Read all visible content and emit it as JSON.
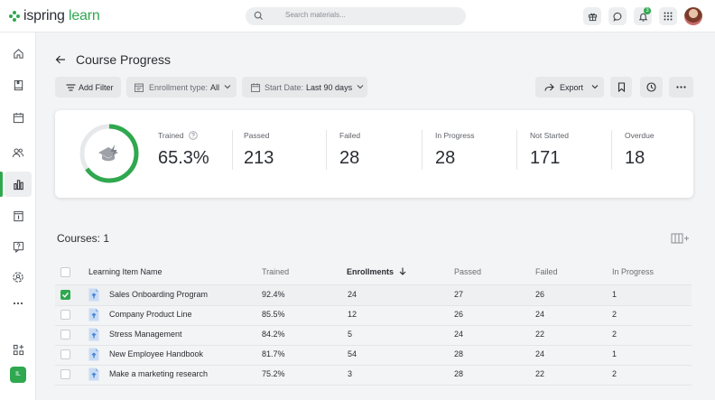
{
  "app": {
    "logo_text": "ispring",
    "logo_suffix": "learn"
  },
  "search": {
    "placeholder": "Search materials..."
  },
  "header": {
    "notification_count": "3"
  },
  "sidebar": {
    "user_initials": "IL"
  },
  "page": {
    "title": "Course Progress"
  },
  "toolbar": {
    "add_filter": "Add Filter",
    "enrollment_label": "Enrollment type:",
    "enrollment_value": "All",
    "start_date_label": "Start Date:",
    "start_date_value": "Last 90 days",
    "export": "Export"
  },
  "summary": {
    "trained_fraction": 0.653,
    "stats": [
      {
        "label": "Trained",
        "value": "65.3%"
      },
      {
        "label": "Passed",
        "value": "213"
      },
      {
        "label": "Failed",
        "value": "28"
      },
      {
        "label": "In Progress",
        "value": "28"
      },
      {
        "label": "Not Started",
        "value": "171"
      },
      {
        "label": "Overdue",
        "value": "18"
      }
    ]
  },
  "courses": {
    "title": "Courses: 1",
    "columns": [
      "Learning Item Name",
      "Trained",
      "Enrollments",
      "Passed",
      "Failed",
      "In Progress"
    ],
    "rows": [
      {
        "selected": true,
        "name": "Sales Onboarding Program",
        "trained": "92.4%",
        "enrollments": "24",
        "passed": "27",
        "failed": "26",
        "in_progress": "1"
      },
      {
        "selected": false,
        "name": "Company Product Line",
        "trained": "85.5%",
        "enrollments": "12",
        "passed": "26",
        "failed": "24",
        "in_progress": "2"
      },
      {
        "selected": false,
        "name": "Stress Management",
        "trained": "84.2%",
        "enrollments": "5",
        "passed": "24",
        "failed": "22",
        "in_progress": "2"
      },
      {
        "selected": false,
        "name": "New Employee Handbook",
        "trained": "81.7%",
        "enrollments": "54",
        "passed": "28",
        "failed": "24",
        "in_progress": "1"
      },
      {
        "selected": false,
        "name": "Make a marketing research",
        "trained": "75.2%",
        "enrollments": "3",
        "passed": "28",
        "failed": "22",
        "in_progress": "2"
      }
    ]
  },
  "colors": {
    "accent": "#2fa84f",
    "ring_track": "#e6e8ea"
  }
}
